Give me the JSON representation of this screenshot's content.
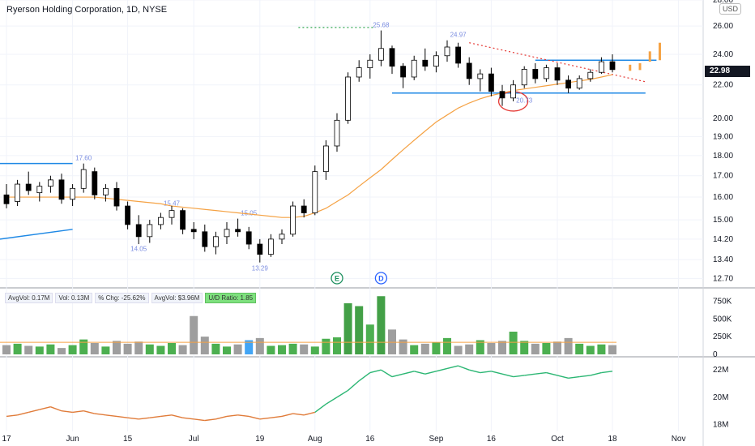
{
  "header": {
    "title": "Ryerson Holding Corporation, 1D, NYSE",
    "currency": "USD"
  },
  "last_price": "22.98",
  "volume_stats": [
    "AvgVol: 0.17M",
    "Vol: 0.13M",
    "% Chg: -25.62%",
    "AvgVol: $3.96M",
    "U/D Ratio: 1.85"
  ],
  "event_markers": [
    {
      "label": "E",
      "x": 30,
      "color": "#1c8f5e"
    },
    {
      "label": "D",
      "x": 34,
      "color": "#2962ff"
    },
    {
      "label": "E",
      "x": 76,
      "color": "#c03bc9"
    }
  ],
  "price_labels": [
    {
      "x": 7,
      "y": 17.6,
      "text": "17.60"
    },
    {
      "x": 15,
      "y": 15.47,
      "text": "15.47"
    },
    {
      "x": 12,
      "y": 14.05,
      "text": "14.05"
    },
    {
      "x": 22,
      "y": 15.05,
      "text": "15.05"
    },
    {
      "x": 23,
      "y": 13.29,
      "text": "13.29"
    },
    {
      "x": 34,
      "y": 25.68,
      "text": "25.68"
    },
    {
      "x": 41,
      "y": 24.97,
      "text": "24.97"
    },
    {
      "x": 47,
      "y": 20.73,
      "text": "20.73"
    }
  ],
  "colors": {
    "up": "#ffffff",
    "down": "#000000",
    "ma": "#f5a244",
    "trend": "#1e88e5",
    "ud_line": "#2bb673",
    "ud_down": "#e07b39",
    "resist": "#e53935"
  },
  "chart_data": [
    {
      "type": "candlestick",
      "title": "Ryerson Holding Corporation, 1D, NYSE",
      "x_tick_labels": [
        "17",
        "Jun",
        "15",
        "Jul",
        "19",
        "Aug",
        "16",
        "Sep",
        "16",
        "Oct",
        "18",
        "Nov"
      ],
      "x_tick_index": [
        0,
        6,
        11,
        17,
        23,
        28,
        33,
        39,
        44,
        50,
        55,
        61
      ],
      "y_ticks": [
        12.7,
        13.4,
        14.2,
        15.0,
        16.0,
        17.0,
        18.0,
        19.0,
        20.0,
        22.0,
        24.0,
        26.0,
        28.0
      ],
      "ylim": [
        12.45,
        28.0
      ],
      "y_scale": "log",
      "candles": [
        {
          "o": 16.1,
          "h": 16.6,
          "l": 15.5,
          "c": 15.7
        },
        {
          "o": 15.8,
          "h": 16.8,
          "l": 15.6,
          "c": 16.6
        },
        {
          "o": 16.6,
          "h": 17.2,
          "l": 16.1,
          "c": 16.3
        },
        {
          "o": 16.2,
          "h": 16.7,
          "l": 15.8,
          "c": 16.5
        },
        {
          "o": 16.5,
          "h": 17.0,
          "l": 16.2,
          "c": 16.8
        },
        {
          "o": 16.8,
          "h": 17.1,
          "l": 15.7,
          "c": 15.9
        },
        {
          "o": 15.9,
          "h": 16.6,
          "l": 15.6,
          "c": 16.4
        },
        {
          "o": 16.4,
          "h": 17.6,
          "l": 16.2,
          "c": 17.3
        },
        {
          "o": 17.2,
          "h": 17.4,
          "l": 15.9,
          "c": 16.1
        },
        {
          "o": 16.1,
          "h": 16.6,
          "l": 15.8,
          "c": 16.4
        },
        {
          "o": 16.4,
          "h": 16.7,
          "l": 15.4,
          "c": 15.6
        },
        {
          "o": 15.6,
          "h": 15.8,
          "l": 14.6,
          "c": 14.8
        },
        {
          "o": 14.8,
          "h": 15.2,
          "l": 14.0,
          "c": 14.3
        },
        {
          "o": 14.3,
          "h": 15.0,
          "l": 14.05,
          "c": 14.8
        },
        {
          "o": 14.8,
          "h": 15.3,
          "l": 14.6,
          "c": 15.1
        },
        {
          "o": 15.1,
          "h": 15.6,
          "l": 14.8,
          "c": 15.4
        },
        {
          "o": 15.4,
          "h": 15.5,
          "l": 14.4,
          "c": 14.6
        },
        {
          "o": 14.6,
          "h": 14.9,
          "l": 14.2,
          "c": 14.5
        },
        {
          "o": 14.5,
          "h": 14.8,
          "l": 13.7,
          "c": 13.9
        },
        {
          "o": 13.9,
          "h": 14.5,
          "l": 13.6,
          "c": 14.3
        },
        {
          "o": 14.3,
          "h": 14.9,
          "l": 14.0,
          "c": 14.6
        },
        {
          "o": 14.6,
          "h": 15.05,
          "l": 14.3,
          "c": 14.5
        },
        {
          "o": 14.5,
          "h": 14.7,
          "l": 13.8,
          "c": 14.0
        },
        {
          "o": 14.0,
          "h": 14.2,
          "l": 13.29,
          "c": 13.6
        },
        {
          "o": 13.6,
          "h": 14.4,
          "l": 13.5,
          "c": 14.2
        },
        {
          "o": 14.2,
          "h": 14.6,
          "l": 14.0,
          "c": 14.4
        },
        {
          "o": 14.4,
          "h": 15.8,
          "l": 14.3,
          "c": 15.6
        },
        {
          "o": 15.6,
          "h": 15.9,
          "l": 15.1,
          "c": 15.3
        },
        {
          "o": 15.3,
          "h": 17.5,
          "l": 15.2,
          "c": 17.2
        },
        {
          "o": 17.2,
          "h": 18.8,
          "l": 16.8,
          "c": 18.5
        },
        {
          "o": 18.5,
          "h": 20.3,
          "l": 18.2,
          "c": 19.9
        },
        {
          "o": 19.9,
          "h": 22.8,
          "l": 19.7,
          "c": 22.5
        },
        {
          "o": 22.5,
          "h": 23.6,
          "l": 22.2,
          "c": 23.1
        },
        {
          "o": 23.1,
          "h": 24.0,
          "l": 22.4,
          "c": 23.6
        },
        {
          "o": 23.6,
          "h": 25.68,
          "l": 23.2,
          "c": 24.4
        },
        {
          "o": 24.4,
          "h": 24.6,
          "l": 22.7,
          "c": 23.2
        },
        {
          "o": 23.2,
          "h": 23.4,
          "l": 21.8,
          "c": 22.5
        },
        {
          "o": 22.5,
          "h": 23.9,
          "l": 22.3,
          "c": 23.6
        },
        {
          "o": 23.6,
          "h": 24.4,
          "l": 22.9,
          "c": 23.2
        },
        {
          "o": 23.2,
          "h": 24.2,
          "l": 22.8,
          "c": 23.9
        },
        {
          "o": 23.9,
          "h": 24.97,
          "l": 23.5,
          "c": 24.5
        },
        {
          "o": 24.5,
          "h": 24.8,
          "l": 23.1,
          "c": 23.4
        },
        {
          "o": 23.4,
          "h": 23.8,
          "l": 22.0,
          "c": 22.4
        },
        {
          "o": 22.4,
          "h": 23.0,
          "l": 21.6,
          "c": 22.7
        },
        {
          "o": 22.7,
          "h": 23.1,
          "l": 21.3,
          "c": 21.6
        },
        {
          "o": 21.6,
          "h": 22.0,
          "l": 20.73,
          "c": 21.2
        },
        {
          "o": 21.2,
          "h": 22.3,
          "l": 21.0,
          "c": 22.0
        },
        {
          "o": 22.0,
          "h": 23.2,
          "l": 21.8,
          "c": 23.0
        },
        {
          "o": 23.0,
          "h": 23.4,
          "l": 22.1,
          "c": 22.4
        },
        {
          "o": 22.4,
          "h": 23.3,
          "l": 22.2,
          "c": 23.1
        },
        {
          "o": 23.1,
          "h": 23.4,
          "l": 22.0,
          "c": 22.3
        },
        {
          "o": 22.3,
          "h": 22.6,
          "l": 21.5,
          "c": 21.8
        },
        {
          "o": 21.8,
          "h": 22.6,
          "l": 21.7,
          "c": 22.4
        },
        {
          "o": 22.4,
          "h": 23.0,
          "l": 22.2,
          "c": 22.8
        },
        {
          "o": 22.8,
          "h": 23.8,
          "l": 22.7,
          "c": 23.5
        },
        {
          "o": 23.5,
          "h": 24.0,
          "l": 22.8,
          "c": 22.98
        }
      ],
      "moving_average": [
        16.0,
        16.0,
        16.0,
        16.0,
        16.0,
        16.0,
        16.0,
        16.0,
        16.0,
        15.95,
        15.9,
        15.85,
        15.8,
        15.75,
        15.7,
        15.6,
        15.55,
        15.5,
        15.45,
        15.4,
        15.35,
        15.3,
        15.25,
        15.2,
        15.15,
        15.1,
        15.1,
        15.15,
        15.3,
        15.5,
        15.8,
        16.1,
        16.5,
        16.9,
        17.3,
        17.8,
        18.3,
        18.8,
        19.3,
        19.8,
        20.2,
        20.6,
        20.9,
        21.15,
        21.35,
        21.5,
        21.65,
        21.75,
        21.85,
        21.95,
        22.05,
        22.15,
        22.25,
        22.35,
        22.5,
        22.65
      ],
      "projected_bars": [
        {
          "o": 23.3,
          "c": 22.9
        },
        {
          "o": 23.4,
          "c": 22.95
        },
        {
          "o": 24.2,
          "c": 23.5
        },
        {
          "o": 24.8,
          "c": 23.6
        }
      ]
    },
    {
      "type": "bar",
      "title": "Volume",
      "ylim": [
        0,
        880000
      ],
      "y_tick_labels": [
        "750K",
        "500K",
        "250K",
        "0"
      ],
      "y_ticks": [
        750000,
        500000,
        250000,
        0
      ],
      "values": [
        130000,
        150000,
        120000,
        110000,
        140000,
        90000,
        130000,
        210000,
        160000,
        110000,
        190000,
        150000,
        180000,
        140000,
        120000,
        160000,
        130000,
        540000,
        250000,
        150000,
        110000,
        140000,
        200000,
        230000,
        120000,
        130000,
        150000,
        140000,
        110000,
        220000,
        240000,
        720000,
        680000,
        420000,
        820000,
        350000,
        210000,
        130000,
        150000,
        170000,
        230000,
        120000,
        140000,
        200000,
        160000,
        190000,
        320000,
        190000,
        150000,
        160000,
        180000,
        230000,
        150000,
        120000,
        140000,
        130000
      ],
      "average_line": 170000
    },
    {
      "type": "line",
      "title": "U/D",
      "ylim": [
        17.5,
        22.9
      ],
      "y_tick_labels": [
        "22M",
        "20M",
        "18M"
      ],
      "y_ticks": [
        22,
        20,
        18
      ],
      "values": [
        18.6,
        18.7,
        18.9,
        19.1,
        19.3,
        19.0,
        18.9,
        19.0,
        18.8,
        18.7,
        18.6,
        18.5,
        18.4,
        18.5,
        18.6,
        18.7,
        18.5,
        18.4,
        18.3,
        18.4,
        18.6,
        18.7,
        18.6,
        18.4,
        18.5,
        18.6,
        18.8,
        18.7,
        18.9,
        19.5,
        20.0,
        20.5,
        21.2,
        21.8,
        22.0,
        21.5,
        21.7,
        21.9,
        21.7,
        21.9,
        22.1,
        22.3,
        22.0,
        21.8,
        21.9,
        21.7,
        21.5,
        21.6,
        21.7,
        21.8,
        21.6,
        21.4,
        21.5,
        21.6,
        21.8,
        21.9
      ]
    }
  ]
}
